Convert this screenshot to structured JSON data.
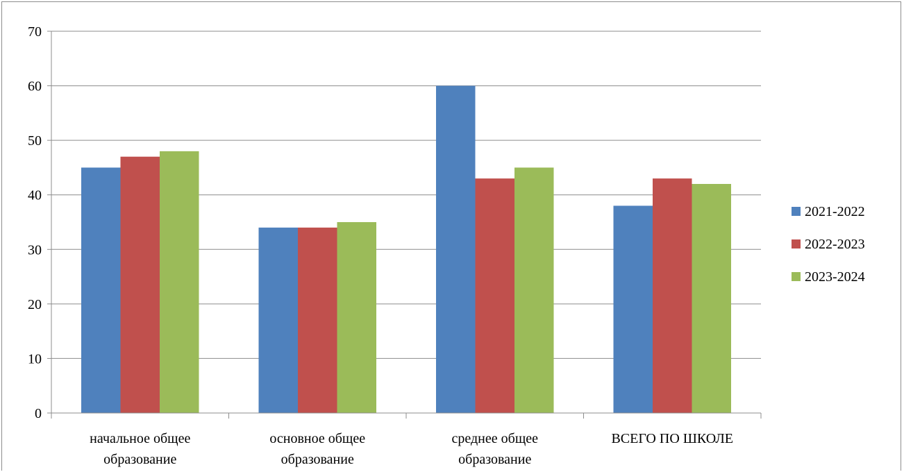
{
  "chart_data": {
    "type": "bar",
    "categories": [
      [
        "начальное общее",
        "образование"
      ],
      [
        "основное общее",
        "образование"
      ],
      [
        "среднее общее",
        "образование"
      ],
      [
        "ВСЕГО ПО ШКОЛЕ"
      ]
    ],
    "series": [
      {
        "name": "2021-2022",
        "color": "#4F81BD",
        "values": [
          45,
          34,
          60,
          38
        ]
      },
      {
        "name": "2022-2023",
        "color": "#C0504D",
        "values": [
          47,
          34,
          43,
          43
        ]
      },
      {
        "name": "2023-2024",
        "color": "#9BBB59",
        "values": [
          48,
          35,
          45,
          42
        ]
      }
    ],
    "ylim": [
      0,
      70
    ],
    "yticks": [
      "0",
      "10",
      "20",
      "30",
      "40",
      "50",
      "60",
      "70"
    ],
    "grid": true,
    "gridline_color": "#8c8c8c",
    "legend_position": "right",
    "xlabel": "",
    "ylabel": "",
    "title": ""
  }
}
